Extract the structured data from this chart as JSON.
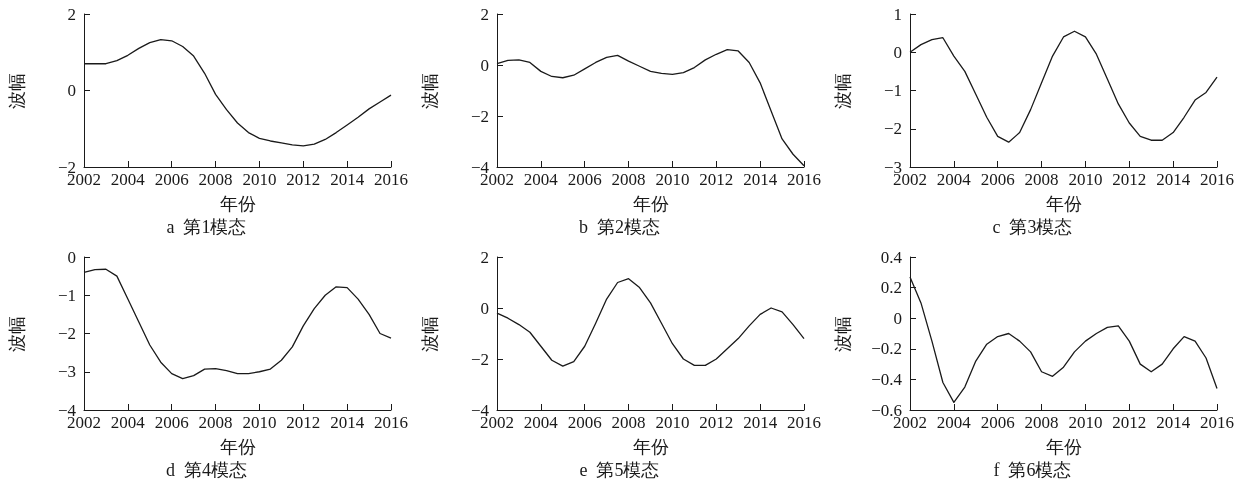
{
  "chart_data": [
    {
      "type": "line",
      "title": "a  第1模态",
      "xlabel": "年份",
      "ylabel": "波幅",
      "color": "#1a1a1a",
      "xlim": [
        2002,
        2016
      ],
      "xticks": [
        2002,
        2004,
        2006,
        2008,
        2010,
        2012,
        2014,
        2016
      ],
      "ylim": [
        -2,
        2
      ],
      "yticks": [
        -2,
        0,
        2
      ],
      "x": [
        2002,
        2002.5,
        2003,
        2003.5,
        2004,
        2004.5,
        2005,
        2005.5,
        2006,
        2006.5,
        2007,
        2007.5,
        2008,
        2008.5,
        2009,
        2009.5,
        2010,
        2010.5,
        2011,
        2011.5,
        2012,
        2012.5,
        2013,
        2013.5,
        2014,
        2014.5,
        2015,
        2015.5,
        2016
      ],
      "values": [
        0.7,
        0.7,
        0.7,
        0.78,
        0.92,
        1.1,
        1.25,
        1.33,
        1.3,
        1.15,
        0.9,
        0.45,
        -0.1,
        -0.5,
        -0.85,
        -1.1,
        -1.25,
        -1.32,
        -1.37,
        -1.42,
        -1.45,
        -1.4,
        -1.28,
        -1.1,
        -0.9,
        -0.7,
        -0.48,
        -0.3,
        -0.12
      ]
    },
    {
      "type": "line",
      "title": "b  第2模态",
      "xlabel": "年份",
      "ylabel": "波幅",
      "color": "#1a1a1a",
      "xlim": [
        2002,
        2016
      ],
      "xticks": [
        2002,
        2004,
        2006,
        2008,
        2010,
        2012,
        2014,
        2016
      ],
      "ylim": [
        -4,
        2
      ],
      "yticks": [
        -4,
        -2,
        0,
        2
      ],
      "x": [
        2002,
        2002.5,
        2003,
        2003.5,
        2004,
        2004.5,
        2005,
        2005.5,
        2006,
        2006.5,
        2007,
        2007.5,
        2008,
        2008.5,
        2009,
        2009.5,
        2010,
        2010.5,
        2011,
        2011.5,
        2012,
        2012.5,
        2013,
        2013.5,
        2014,
        2014.5,
        2015,
        2015.5,
        2016
      ],
      "values": [
        0.05,
        0.18,
        0.2,
        0.1,
        -0.25,
        -0.45,
        -0.5,
        -0.4,
        -0.15,
        0.1,
        0.3,
        0.38,
        0.15,
        -0.05,
        -0.25,
        -0.33,
        -0.37,
        -0.3,
        -0.1,
        0.2,
        0.42,
        0.6,
        0.55,
        0.1,
        -0.7,
        -1.8,
        -2.9,
        -3.5,
        -3.95
      ]
    },
    {
      "type": "line",
      "title": "c  第3模态",
      "xlabel": "年份",
      "ylabel": "波幅",
      "color": "#1a1a1a",
      "xlim": [
        2002,
        2016
      ],
      "xticks": [
        2002,
        2004,
        2006,
        2008,
        2010,
        2012,
        2014,
        2016
      ],
      "ylim": [
        -3,
        1
      ],
      "yticks": [
        -3,
        -2,
        -1,
        0,
        1
      ],
      "x": [
        2002,
        2002.5,
        2003,
        2003.5,
        2004,
        2004.5,
        2005,
        2005.5,
        2006,
        2006.5,
        2007,
        2007.5,
        2008,
        2008.5,
        2009,
        2009.5,
        2010,
        2010.5,
        2011,
        2011.5,
        2012,
        2012.5,
        2013,
        2013.5,
        2014,
        2014.5,
        2015,
        2015.5,
        2016
      ],
      "values": [
        0,
        0.2,
        0.33,
        0.38,
        -0.1,
        -0.5,
        -1.1,
        -1.7,
        -2.2,
        -2.35,
        -2.1,
        -1.5,
        -0.8,
        -0.1,
        0.4,
        0.55,
        0.4,
        -0.05,
        -0.7,
        -1.35,
        -1.85,
        -2.2,
        -2.3,
        -2.3,
        -2.1,
        -1.7,
        -1.25,
        -1.05,
        -0.65
      ]
    },
    {
      "type": "line",
      "title": "d  第4模态",
      "xlabel": "年份",
      "ylabel": "波幅",
      "color": "#1a1a1a",
      "xlim": [
        2002,
        2016
      ],
      "xticks": [
        2002,
        2004,
        2006,
        2008,
        2010,
        2012,
        2014,
        2016
      ],
      "ylim": [
        -4,
        0
      ],
      "yticks": [
        -4,
        -3,
        -2,
        -1,
        0
      ],
      "x": [
        2002,
        2002.5,
        2003,
        2003.5,
        2004,
        2004.5,
        2005,
        2005.5,
        2006,
        2006.5,
        2007,
        2007.5,
        2008,
        2008.5,
        2009,
        2009.5,
        2010,
        2010.5,
        2011,
        2011.5,
        2012,
        2012.5,
        2013,
        2013.5,
        2014,
        2014.5,
        2015,
        2015.5,
        2016
      ],
      "values": [
        -0.4,
        -0.33,
        -0.32,
        -0.5,
        -1.1,
        -1.7,
        -2.3,
        -2.75,
        -3.05,
        -3.18,
        -3.1,
        -2.93,
        -2.92,
        -2.97,
        -3.05,
        -3.05,
        -3,
        -2.93,
        -2.7,
        -2.35,
        -1.8,
        -1.35,
        -1,
        -0.78,
        -0.8,
        -1.1,
        -1.5,
        -2,
        -2.12
      ]
    },
    {
      "type": "line",
      "title": "e  第5模态",
      "xlabel": "年份",
      "ylabel": "波幅",
      "color": "#1a1a1a",
      "xlim": [
        2002,
        2016
      ],
      "xticks": [
        2002,
        2004,
        2006,
        2008,
        2010,
        2012,
        2014,
        2016
      ],
      "ylim": [
        -4,
        2
      ],
      "yticks": [
        -4,
        -2,
        0,
        2
      ],
      "x": [
        2002,
        2002.5,
        2003,
        2003.5,
        2004,
        2004.5,
        2005,
        2005.5,
        2006,
        2006.5,
        2007,
        2007.5,
        2008,
        2008.5,
        2009,
        2009.5,
        2010,
        2010.5,
        2011,
        2011.5,
        2012,
        2012.5,
        2013,
        2013.5,
        2014,
        2014.5,
        2015,
        2015.5,
        2016
      ],
      "values": [
        -0.2,
        -0.4,
        -0.65,
        -0.95,
        -1.5,
        -2.05,
        -2.28,
        -2.1,
        -1.5,
        -0.6,
        0.35,
        1,
        1.15,
        0.8,
        0.2,
        -0.6,
        -1.4,
        -2,
        -2.25,
        -2.25,
        -2,
        -1.6,
        -1.2,
        -0.7,
        -0.25,
        0,
        -0.15,
        -0.65,
        -1.2
      ]
    },
    {
      "type": "line",
      "title": "f  第6模态",
      "xlabel": "年份",
      "ylabel": "波幅",
      "color": "#1a1a1a",
      "xlim": [
        2002,
        2016
      ],
      "xticks": [
        2002,
        2004,
        2006,
        2008,
        2010,
        2012,
        2014,
        2016
      ],
      "ylim": [
        -0.6,
        0.4
      ],
      "yticks": [
        -0.6,
        -0.4,
        -0.2,
        0,
        0.2,
        0.4
      ],
      "x": [
        2002,
        2002.5,
        2003,
        2003.5,
        2004,
        2004.5,
        2005,
        2005.5,
        2006,
        2006.5,
        2007,
        2007.5,
        2008,
        2008.5,
        2009,
        2009.5,
        2010,
        2010.5,
        2011,
        2011.5,
        2012,
        2012.5,
        2013,
        2013.5,
        2014,
        2014.5,
        2015,
        2015.5,
        2016
      ],
      "values": [
        0.27,
        0.1,
        -0.15,
        -0.42,
        -0.55,
        -0.45,
        -0.28,
        -0.17,
        -0.12,
        -0.1,
        -0.15,
        -0.22,
        -0.35,
        -0.38,
        -0.32,
        -0.22,
        -0.15,
        -0.1,
        -0.06,
        -0.05,
        -0.15,
        -0.3,
        -0.35,
        -0.3,
        -0.2,
        -0.12,
        -0.15,
        -0.26,
        -0.46
      ]
    }
  ]
}
